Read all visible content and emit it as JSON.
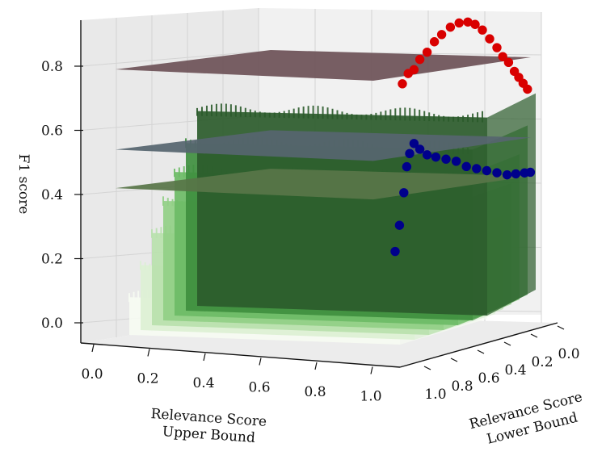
{
  "chart_data": {
    "type": "surface3d",
    "axes": {
      "x": {
        "label_line1": "Relevance Score",
        "label_line2": "Upper Bound",
        "ticks": [
          "0.0",
          "0.2",
          "0.4",
          "0.6",
          "0.8",
          "1.0"
        ]
      },
      "y": {
        "label_line1": "Relevance Score",
        "label_line2": "Lower Bound",
        "ticks": [
          "0.0",
          "0.2",
          "0.4",
          "0.6",
          "0.8",
          "1.0"
        ]
      },
      "z": {
        "label": "F1 score",
        "ticks": [
          "0.0",
          "0.2",
          "0.4",
          "0.6",
          "0.8"
        ],
        "range": [
          0,
          0.9
        ]
      }
    },
    "reference_planes": [
      {
        "z": 0.81,
        "color": "#6e5358"
      },
      {
        "z": 0.56,
        "color": "#56656f"
      },
      {
        "z": 0.44,
        "color": "#587548"
      }
    ],
    "surface": {
      "colormap": "Greens",
      "bands": [
        {
          "z": 0.08,
          "color": "#f6fbf2"
        },
        {
          "z": 0.18,
          "color": "#dcf0d4"
        },
        {
          "z": 0.28,
          "color": "#b8e1ad"
        },
        {
          "z": 0.38,
          "color": "#91cf86"
        },
        {
          "z": 0.47,
          "color": "#6dbb66"
        },
        {
          "z": 0.56,
          "color": "#3f8f3f"
        },
        {
          "z": 0.66,
          "color": "#2b5b2b"
        }
      ]
    },
    "series": [
      {
        "color": "#d90000",
        "points": [
          [
            0.1,
            0.74
          ],
          [
            0.14,
            0.77
          ],
          [
            0.18,
            0.78
          ],
          [
            0.22,
            0.81
          ],
          [
            0.27,
            0.83
          ],
          [
            0.32,
            0.86
          ],
          [
            0.37,
            0.88
          ],
          [
            0.43,
            0.9
          ],
          [
            0.49,
            0.91
          ],
          [
            0.55,
            0.91
          ],
          [
            0.6,
            0.9
          ],
          [
            0.65,
            0.88
          ],
          [
            0.7,
            0.85
          ],
          [
            0.75,
            0.82
          ],
          [
            0.79,
            0.79
          ],
          [
            0.83,
            0.77
          ],
          [
            0.87,
            0.74
          ],
          [
            0.9,
            0.72
          ],
          [
            0.93,
            0.7
          ],
          [
            0.96,
            0.68
          ]
        ]
      },
      {
        "color": "#00008b",
        "points": [
          [
            0.05,
            0.22
          ],
          [
            0.08,
            0.3
          ],
          [
            0.11,
            0.4
          ],
          [
            0.13,
            0.48
          ],
          [
            0.15,
            0.52
          ],
          [
            0.18,
            0.55
          ],
          [
            0.22,
            0.53
          ],
          [
            0.27,
            0.51
          ],
          [
            0.33,
            0.5
          ],
          [
            0.4,
            0.49
          ],
          [
            0.47,
            0.48
          ],
          [
            0.54,
            0.46
          ],
          [
            0.61,
            0.45
          ],
          [
            0.68,
            0.44
          ],
          [
            0.75,
            0.43
          ],
          [
            0.82,
            0.42
          ],
          [
            0.88,
            0.42
          ],
          [
            0.94,
            0.42
          ],
          [
            0.98,
            0.42
          ]
        ]
      }
    ]
  }
}
